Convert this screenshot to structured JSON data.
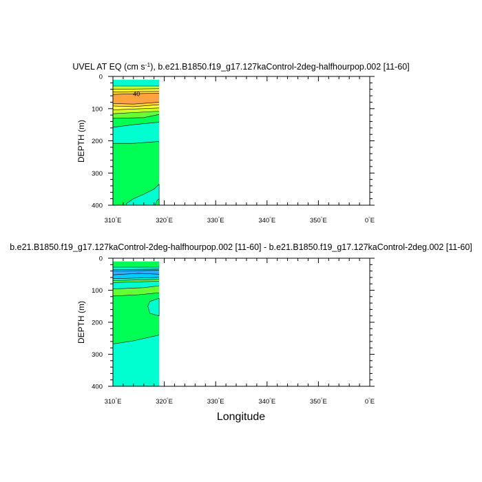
{
  "chart_data": [
    {
      "type": "contour",
      "title_parts": {
        "pre": "UVEL AT EQ (cm s",
        "sup": "-1",
        "post": "), b.e21.B1850.f19_g17.127kaControl-2deg-halfhourpop.002 [11-60]"
      },
      "ylabel": "DEPTH (m)",
      "xlabel": "",
      "xlim": [
        310,
        360
      ],
      "ylim": [
        400,
        0
      ],
      "x_ticks": [
        310,
        320,
        330,
        340,
        350,
        360
      ],
      "x_tick_labels": [
        [
          "310",
          "E"
        ],
        [
          "320",
          "E"
        ],
        [
          "330",
          "E"
        ],
        [
          "340",
          "E"
        ],
        [
          "350",
          "E"
        ],
        [
          "0",
          "E"
        ]
      ],
      "y_ticks": [
        0,
        100,
        200,
        300,
        400
      ],
      "data_extent_x": [
        310,
        319
      ],
      "contour_label": "40",
      "contour_label_at": {
        "lon": 314.6,
        "depth": 55
      },
      "grid": false,
      "bands": [
        {
          "color": "#00ffd0",
          "top": [
            [
              310,
              10
            ],
            [
              319,
              10
            ]
          ],
          "bottom": [
            [
              310,
              30
            ],
            [
              319,
              30
            ]
          ]
        },
        {
          "color": "#c8ff2a",
          "top": [
            [
              310,
              30
            ],
            [
              319,
              30
            ]
          ],
          "bottom": [
            [
              310,
              40
            ],
            [
              319,
              38
            ]
          ]
        },
        {
          "color": "#ffff33",
          "top": [
            [
              310,
              40
            ],
            [
              319,
              38
            ]
          ],
          "bottom": [
            [
              310,
              48
            ],
            [
              319,
              46
            ]
          ]
        },
        {
          "color": "#ffd12a",
          "top": [
            [
              310,
              48
            ],
            [
              319,
              46
            ]
          ],
          "bottom": [
            [
              310,
              56
            ],
            [
              314,
              54
            ],
            [
              319,
              52
            ]
          ]
        },
        {
          "color": "#ffa340",
          "top": [
            [
              310,
              56
            ],
            [
              314,
              54
            ],
            [
              319,
              52
            ]
          ],
          "bottom": [
            [
              310,
              84
            ],
            [
              314,
              86
            ],
            [
              319,
              80
            ]
          ]
        },
        {
          "color": "#ffd12a",
          "top": [
            [
              310,
              84
            ],
            [
              314,
              86
            ],
            [
              319,
              80
            ]
          ],
          "bottom": [
            [
              310,
              92
            ],
            [
              314,
              94
            ],
            [
              319,
              88
            ]
          ]
        },
        {
          "color": "#ffff33",
          "top": [
            [
              310,
              92
            ],
            [
              314,
              94
            ],
            [
              319,
              88
            ]
          ],
          "bottom": [
            [
              310,
              104
            ],
            [
              319,
              98
            ]
          ]
        },
        {
          "color": "#c8ff2a",
          "top": [
            [
              310,
              104
            ],
            [
              319,
              98
            ]
          ],
          "bottom": [
            [
              310,
              116
            ],
            [
              319,
              108
            ]
          ]
        },
        {
          "color": "#66ff33",
          "top": [
            [
              310,
              116
            ],
            [
              319,
              108
            ]
          ],
          "bottom": [
            [
              310,
              130
            ],
            [
              316,
              128
            ],
            [
              319,
              118
            ]
          ]
        },
        {
          "color": "#00ff55",
          "top": [
            [
              310,
              130
            ],
            [
              316,
              128
            ],
            [
              319,
              118
            ]
          ],
          "bottom": [
            [
              310,
              158
            ],
            [
              314,
              150
            ],
            [
              319,
              142
            ]
          ]
        },
        {
          "color": "#00ffd0",
          "top": [
            [
              310,
              158
            ],
            [
              314,
              150
            ],
            [
              319,
              142
            ]
          ],
          "bottom": [
            [
              310,
              208
            ],
            [
              314,
              208
            ],
            [
              319,
              202
            ]
          ]
        },
        {
          "color": "#00ff55",
          "top": [
            [
              310,
              208
            ],
            [
              314,
              208
            ],
            [
              319,
              202
            ]
          ],
          "bottom": [
            [
              310,
              400
            ],
            [
              319,
              400
            ]
          ]
        }
      ],
      "patches": [
        {
          "color": "#00ffd0",
          "points": [
            [
              312.6,
              395
            ],
            [
              314,
              380
            ],
            [
              316,
              366
            ],
            [
              318,
              350
            ],
            [
              319,
              335
            ],
            [
              319,
              400
            ],
            [
              312.6,
              400
            ]
          ]
        },
        {
          "color": "#00ff55",
          "points": [
            [
              318.2,
              400
            ],
            [
              318.6,
              385
            ],
            [
              319,
              380
            ],
            [
              319,
              400
            ]
          ]
        }
      ]
    },
    {
      "type": "contour",
      "title_parts": {
        "pre": "b.e21.B1850.f19_g17.127kaControl-2deg-halfhourpop.002 [11-60] - b.e21.B1850.f19_g17.127kaControl-2deg.002 [11-60]",
        "sup": "",
        "post": ""
      },
      "ylabel": "DEPTH (m)",
      "xlabel": "Longitude",
      "xlim": [
        310,
        360
      ],
      "ylim": [
        400,
        0
      ],
      "x_ticks": [
        310,
        320,
        330,
        340,
        350,
        360
      ],
      "x_tick_labels": [
        [
          "310",
          "E"
        ],
        [
          "320",
          "E"
        ],
        [
          "330",
          "E"
        ],
        [
          "340",
          "E"
        ],
        [
          "350",
          "E"
        ],
        [
          "0",
          "E"
        ]
      ],
      "y_ticks": [
        0,
        100,
        200,
        300,
        400
      ],
      "data_extent_x": [
        310,
        319
      ],
      "grid": false,
      "bands": [
        {
          "color": "#00ff55",
          "top": [
            [
              310,
              10
            ],
            [
              319,
              10
            ]
          ],
          "bottom": [
            [
              310,
              28
            ],
            [
              319,
              28
            ]
          ]
        },
        {
          "color": "#00ffd0",
          "top": [
            [
              310,
              28
            ],
            [
              319,
              28
            ]
          ],
          "bottom": [
            [
              310,
              36
            ],
            [
              319,
              34
            ]
          ]
        },
        {
          "color": "#00ccff",
          "top": [
            [
              310,
              36
            ],
            [
              319,
              34
            ]
          ],
          "bottom": [
            [
              310,
              40
            ],
            [
              319,
              38
            ]
          ]
        },
        {
          "color": "#33aaff",
          "top": [
            [
              310,
              40
            ],
            [
              319,
              38
            ]
          ],
          "bottom": [
            [
              310,
              52
            ],
            [
              315,
              47
            ],
            [
              319,
              50
            ]
          ]
        },
        {
          "color": "#00ccff",
          "top": [
            [
              310,
              52
            ],
            [
              315,
              47
            ],
            [
              319,
              50
            ]
          ],
          "bottom": [
            [
              310,
              64
            ],
            [
              319,
              60
            ]
          ]
        },
        {
          "color": "#00ffd0",
          "top": [
            [
              310,
              64
            ],
            [
              319,
              60
            ]
          ],
          "bottom": [
            [
              310,
              70
            ],
            [
              319,
              66
            ]
          ]
        },
        {
          "color": "#66ff33",
          "top": [
            [
              310,
              70
            ],
            [
              319,
              66
            ]
          ],
          "bottom": [
            [
              310,
              76
            ],
            [
              319,
              72
            ]
          ]
        },
        {
          "color": "#00ffd0",
          "top": [
            [
              310,
              76
            ],
            [
              319,
              72
            ]
          ],
          "bottom": [
            [
              310,
              96
            ],
            [
              316,
              92
            ],
            [
              319,
              86
            ]
          ]
        },
        {
          "color": "#66ff33",
          "top": [
            [
              310,
              96
            ],
            [
              316,
              92
            ],
            [
              319,
              86
            ]
          ],
          "bottom": [
            [
              310,
              118
            ],
            [
              315,
              114
            ],
            [
              319,
              108
            ]
          ]
        },
        {
          "color": "#00ff55",
          "top": [
            [
              310,
              118
            ],
            [
              315,
              114
            ],
            [
              319,
              108
            ]
          ],
          "bottom": [
            [
              310,
              268
            ],
            [
              314,
              258
            ],
            [
              319,
              240
            ]
          ]
        },
        {
          "color": "#00ffd0",
          "top": [
            [
              310,
              268
            ],
            [
              314,
              258
            ],
            [
              319,
              240
            ]
          ],
          "bottom": [
            [
              310,
              400
            ],
            [
              319,
              400
            ]
          ]
        }
      ],
      "patches": [
        {
          "color": "#00ffd0",
          "points": [
            [
              319,
              125
            ],
            [
              317.2,
              135
            ],
            [
              316.8,
              150
            ],
            [
              317.2,
              172
            ],
            [
              319,
              180
            ]
          ]
        }
      ]
    }
  ]
}
